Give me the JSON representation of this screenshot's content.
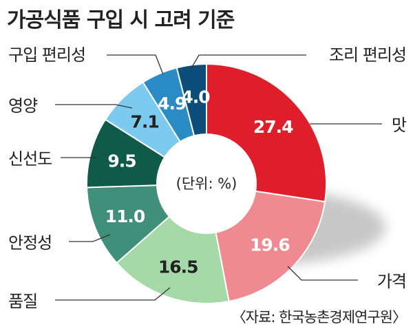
{
  "title": "가공식품 구입 시 고려 기준",
  "source": "〈자료: 한국농촌경제연구원〉",
  "chart_data": {
    "type": "pie",
    "variant": "donut",
    "unit_label": "(단위: %)",
    "categories": [
      "맛",
      "가격",
      "품질",
      "안정성",
      "신선도",
      "영양",
      "구입 편리성",
      "조리 편리성"
    ],
    "values": [
      27.4,
      19.6,
      16.5,
      11.0,
      9.5,
      7.1,
      4.9,
      4.0
    ],
    "value_labels": [
      "27.4",
      "19.6",
      "16.5",
      "11.0",
      "9.5",
      "7.1",
      "4.9",
      "4.0"
    ],
    "colors": [
      "#e01e2b",
      "#ef8a91",
      "#a6d9a8",
      "#3f8f7a",
      "#0f5a48",
      "#7ccaf0",
      "#2b8bc5",
      "#0c4d7a"
    ],
    "value_text_colors": [
      "#ffffff",
      "#ffffff",
      "#222222",
      "#ffffff",
      "#ffffff",
      "#222222",
      "#ffffff",
      "#ffffff"
    ]
  }
}
